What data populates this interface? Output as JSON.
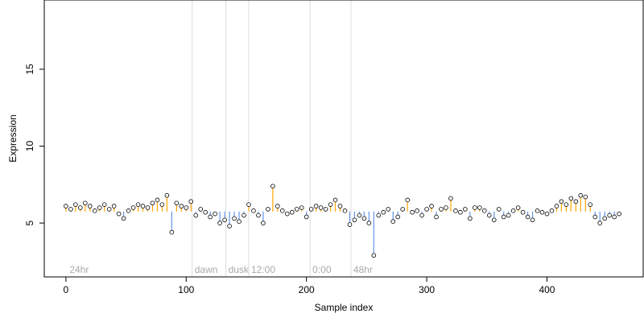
{
  "chart_data": {
    "type": "scatter",
    "title": "",
    "xlabel": "Sample index",
    "ylabel": "Expression",
    "xlim": [
      -18,
      480
    ],
    "ylim": [
      1.5,
      19.5
    ],
    "x_ticks": [
      0,
      100,
      200,
      300,
      400
    ],
    "y_ticks": [
      5,
      10,
      15
    ],
    "baseline": 5.75,
    "above_color": "#FFA500",
    "below_color": "#6495ED",
    "point_fill": "#FFFFFF",
    "point_stroke": "#000000",
    "gridlines": false,
    "segment_markers": [
      {
        "x": 105,
        "label": "dawn"
      },
      {
        "x": 133,
        "label": "dusk"
      },
      {
        "x": 152,
        "label": "12:00"
      },
      {
        "x": 203,
        "label": "0:00"
      },
      {
        "x": 237,
        "label": "48hr"
      }
    ],
    "corner_label": {
      "x": 3,
      "label": "24hr"
    },
    "series": [
      {
        "x": [
          0,
          4,
          8,
          12,
          16,
          20,
          24,
          28,
          32,
          36,
          40,
          44,
          48,
          52,
          56,
          60,
          64,
          68,
          72,
          76,
          80,
          84,
          88,
          92,
          96,
          100,
          104,
          108,
          112,
          116,
          120,
          124,
          128,
          132,
          136,
          140,
          144,
          148,
          152,
          156,
          160,
          164,
          168,
          172,
          176,
          180,
          184,
          188,
          192,
          196,
          200,
          204,
          208,
          212,
          216,
          220,
          224,
          228,
          232,
          236,
          240,
          244,
          248,
          252,
          256,
          260,
          264,
          268,
          272,
          276,
          280,
          284,
          288,
          292,
          296,
          300,
          304,
          308,
          312,
          316,
          320,
          324,
          328,
          332,
          336,
          340,
          344,
          348,
          352,
          356,
          360,
          364,
          368,
          372,
          376,
          380,
          384,
          388,
          392,
          396,
          400,
          404,
          408,
          412,
          416,
          420,
          424,
          428,
          432,
          436,
          440,
          444,
          448,
          452,
          456,
          460
        ],
        "y": [
          6.1,
          5.9,
          6.2,
          6.0,
          6.3,
          6.1,
          5.8,
          6.0,
          6.2,
          5.9,
          6.1,
          5.6,
          5.3,
          5.8,
          6.0,
          6.2,
          6.1,
          6.0,
          6.3,
          6.5,
          6.2,
          6.8,
          4.4,
          6.3,
          6.1,
          6.0,
          6.4,
          5.5,
          5.9,
          5.7,
          5.4,
          5.6,
          5.0,
          5.2,
          4.8,
          5.3,
          5.1,
          5.5,
          6.2,
          5.8,
          5.5,
          5.0,
          5.9,
          7.4,
          6.1,
          5.8,
          5.6,
          5.7,
          5.9,
          6.0,
          5.4,
          5.9,
          6.1,
          6.0,
          5.9,
          6.2,
          6.5,
          6.1,
          5.8,
          4.9,
          5.2,
          5.5,
          5.3,
          5.0,
          2.9,
          5.5,
          5.7,
          5.9,
          5.1,
          5.4,
          5.9,
          6.5,
          5.7,
          5.8,
          5.5,
          5.9,
          6.1,
          5.4,
          5.9,
          6.0,
          6.6,
          5.8,
          5.7,
          5.9,
          5.3,
          6.0,
          6.0,
          5.8,
          5.5,
          5.2,
          5.9,
          5.4,
          5.5,
          5.8,
          6.0,
          5.7,
          5.4,
          5.2,
          5.8,
          5.7,
          5.6,
          5.8,
          6.1,
          6.4,
          6.2,
          6.6,
          6.4,
          6.8,
          6.7,
          6.2,
          5.4,
          5.0,
          5.3,
          5.5,
          5.4,
          5.6
        ]
      }
    ]
  }
}
